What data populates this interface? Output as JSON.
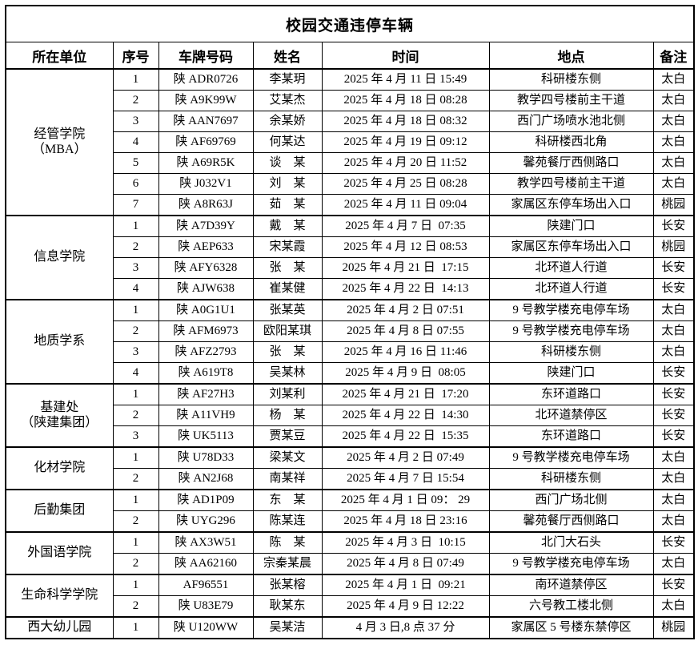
{
  "title": "校园交通违停车辆",
  "colors": {
    "border": "#000000",
    "text": "#000000",
    "background": "#ffffff"
  },
  "table": {
    "headers": [
      "所在单位",
      "序号",
      "车牌号码",
      "姓名",
      "时间",
      "地点",
      "备注"
    ],
    "groups": [
      {
        "unit": "经管学院\n（MBA）",
        "rows": [
          {
            "no": "1",
            "plate": "陕 ADR0726",
            "name": "李某玥",
            "time": "2025 年 4 月 11 日 15:49",
            "place": "科研楼东侧",
            "note": "太白"
          },
          {
            "no": "2",
            "plate": "陕 A9K99W",
            "name": "艾某杰",
            "time": "2025 年 4 月 18 日 08:28",
            "place": "教学四号楼前主干道",
            "note": "太白"
          },
          {
            "no": "3",
            "plate": "陕 AAN7697",
            "name": "余某娇",
            "time": "2025 年 4 月 18 日 08:32",
            "place": "西门广场喷水池北侧",
            "note": "太白"
          },
          {
            "no": "4",
            "plate": "陕 AF69769",
            "name": "何某达",
            "time": "2025 年 4 月 19 日 09:12",
            "place": "科研楼西北角",
            "note": "太白"
          },
          {
            "no": "5",
            "plate": "陕 A69R5K",
            "name": "谈　某",
            "time": "2025 年 4 月 20 日 11:52",
            "place": "馨苑餐厅西侧路口",
            "note": "太白"
          },
          {
            "no": "6",
            "plate": "陕 J032V1",
            "name": "刘　某",
            "time": "2025 年 4 月 25 日 08:28",
            "place": "教学四号楼前主干道",
            "note": "太白"
          },
          {
            "no": "7",
            "plate": "陕 A8R63J",
            "name": "茹　某",
            "time": "2025 年 4 月 11 日 09:04",
            "place": "家属区东停车场出入口",
            "note": "桃园"
          }
        ]
      },
      {
        "unit": "信息学院",
        "rows": [
          {
            "no": "1",
            "plate": "陕 A7D39Y",
            "name": "戴　某",
            "time": "2025 年 4 月 7 日  07:35",
            "place": "陕建门口",
            "note": "长安"
          },
          {
            "no": "2",
            "plate": "陕 AEP633",
            "name": "宋某霞",
            "time": "2025 年 4 月 12 日 08:53",
            "place": "家属区东停车场出入口",
            "note": "桃园"
          },
          {
            "no": "3",
            "plate": "陕 AFY6328",
            "name": "张　某",
            "time": "2025 年 4 月 21 日  17:15",
            "place": "北环道人行道",
            "note": "长安"
          },
          {
            "no": "4",
            "plate": "陕 AJW638",
            "name": "崔某健",
            "time": "2025 年 4 月 22 日  14:13",
            "place": "北环道人行道",
            "note": "长安"
          }
        ]
      },
      {
        "unit": "地质学系",
        "rows": [
          {
            "no": "1",
            "plate": "陕 A0G1U1",
            "name": "张某英",
            "time": "2025 年 4 月 2 日 07:51",
            "place": "9 号教学楼充电停车场",
            "note": "太白"
          },
          {
            "no": "2",
            "plate": "陕 AFM6973",
            "name": "欧阳某琪",
            "time": "2025 年 4 月 8 日 07:55",
            "place": "9 号教学楼充电停车场",
            "note": "太白"
          },
          {
            "no": "3",
            "plate": "陕 AFZ2793",
            "name": "张　某",
            "time": "2025 年 4 月 16 日 11:46",
            "place": "科研楼东侧",
            "note": "太白"
          },
          {
            "no": "4",
            "plate": "陕 A619T8",
            "name": "吴某林",
            "time": "2025 年 4 月 9 日  08:05",
            "place": "陕建门口",
            "note": "长安"
          }
        ]
      },
      {
        "unit": "基建处\n（陕建集团）",
        "rows": [
          {
            "no": "1",
            "plate": "陕 AF27H3",
            "name": "刘某利",
            "time": "2025 年 4 月 21 日  17:20",
            "place": "东环道路口",
            "note": "长安"
          },
          {
            "no": "2",
            "plate": "陕 A11VH9",
            "name": "杨　某",
            "time": "2025 年 4 月 22 日  14:30",
            "place": "北环道禁停区",
            "note": "长安"
          },
          {
            "no": "3",
            "plate": "陕 UK5113",
            "name": "贾某豆",
            "time": "2025 年 4 月 22 日  15:35",
            "place": "东环道路口",
            "note": "长安"
          }
        ]
      },
      {
        "unit": "化材学院",
        "rows": [
          {
            "no": "1",
            "plate": "陕 U78D33",
            "name": "梁某文",
            "time": "2025 年 4 月 2 日 07:49",
            "place": "9 号教学楼充电停车场",
            "note": "太白"
          },
          {
            "no": "2",
            "plate": "陕 AN2J68",
            "name": "南某祥",
            "time": "2025 年 4 月 7 日 15:54",
            "place": "科研楼东侧",
            "note": "太白"
          }
        ]
      },
      {
        "unit": "后勤集团",
        "rows": [
          {
            "no": "1",
            "plate": "陕 AD1P09",
            "name": "东　某",
            "time": "2025 年 4 月 1 日 09： 29",
            "place": "西门广场北侧",
            "note": "太白"
          },
          {
            "no": "2",
            "plate": "陕 UYG296",
            "name": "陈某连",
            "time": "2025 年 4 月 18 日 23:16",
            "place": "馨苑餐厅西侧路口",
            "note": "太白"
          }
        ]
      },
      {
        "unit": "外国语学院",
        "rows": [
          {
            "no": "1",
            "plate": "陕 AX3W51",
            "name": "陈　某",
            "time": "2025 年 4 月 3 日  10:15",
            "place": "北门大石头",
            "note": "长安"
          },
          {
            "no": "2",
            "plate": "陕 AA62160",
            "name": "宗秦某晨",
            "time": "2025 年 4 月 8 日 07:49",
            "place": "9 号教学楼充电停车场",
            "note": "太白"
          }
        ]
      },
      {
        "unit": "生命科学学院",
        "rows": [
          {
            "no": "1",
            "plate": "AF96551",
            "name": "张某榕",
            "time": "2025 年 4 月 1 日  09:21",
            "place": "南环道禁停区",
            "note": "长安"
          },
          {
            "no": "2",
            "plate": "陕 U83E79",
            "name": "耿某东",
            "time": "2025 年 4 月 9 日 12:22",
            "place": "六号教工楼北侧",
            "note": "太白"
          }
        ]
      },
      {
        "unit": "西大幼儿园",
        "rows": [
          {
            "no": "1",
            "plate": "陕 U120WW",
            "name": "吴某洁",
            "time": "4 月 3 日,8 点 37 分",
            "place": "家属区 5 号楼东禁停区",
            "note": "桃园"
          }
        ]
      }
    ]
  }
}
